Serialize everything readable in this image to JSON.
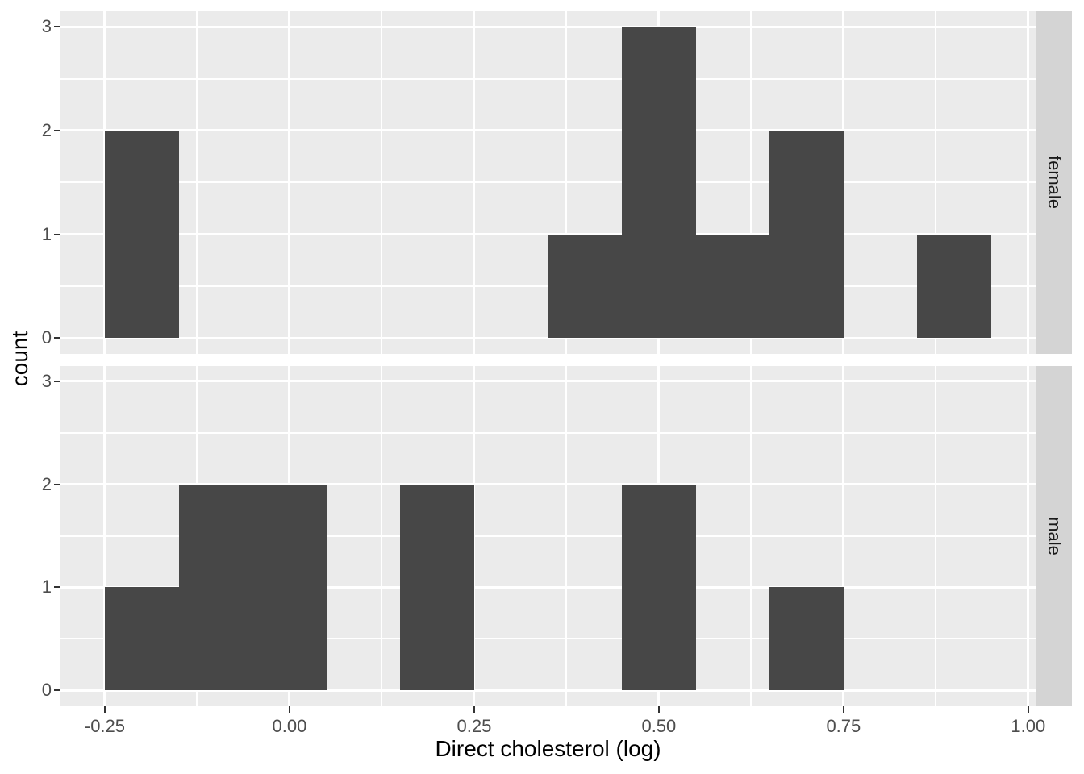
{
  "chart_data": {
    "type": "bar",
    "subtype": "faceted-histogram",
    "title": "",
    "xlabel": "Direct cholesterol (log)",
    "ylabel": "count",
    "binwidth": 0.1,
    "xlim": [
      -0.31,
      1.01
    ],
    "ylim": [
      -0.15,
      3.15
    ],
    "grid": "on",
    "legend_position": "none",
    "facet_layout": "rows, strip labels on right",
    "x_ticks": {
      "values": [
        -0.25,
        0.0,
        0.25,
        0.5,
        0.75,
        1.0
      ],
      "labels": [
        "-0.25",
        "0.00",
        "0.25",
        "0.50",
        "0.75",
        "1.00"
      ]
    },
    "y_ticks": {
      "values": [
        0,
        1,
        2,
        3
      ],
      "labels": [
        "0",
        "1",
        "2",
        "3"
      ]
    },
    "x_minor_gridlines": [
      -0.125,
      0.125,
      0.375,
      0.625,
      0.875
    ],
    "y_minor_gridlines": [
      0.5,
      1.5,
      2.5
    ],
    "facets": [
      {
        "label": "female",
        "bins": [
          {
            "x0": -0.25,
            "x1": -0.15,
            "count": 2
          },
          {
            "x0": 0.35,
            "x1": 0.45,
            "count": 1
          },
          {
            "x0": 0.45,
            "x1": 0.55,
            "count": 3
          },
          {
            "x0": 0.55,
            "x1": 0.65,
            "count": 1
          },
          {
            "x0": 0.65,
            "x1": 0.75,
            "count": 2
          },
          {
            "x0": 0.85,
            "x1": 0.95,
            "count": 1
          }
        ]
      },
      {
        "label": "male",
        "bins": [
          {
            "x0": -0.25,
            "x1": -0.15,
            "count": 1
          },
          {
            "x0": -0.15,
            "x1": -0.05,
            "count": 2
          },
          {
            "x0": -0.05,
            "x1": 0.05,
            "count": 2
          },
          {
            "x0": 0.15,
            "x1": 0.25,
            "count": 2
          },
          {
            "x0": 0.45,
            "x1": 0.55,
            "count": 2
          },
          {
            "x0": 0.65,
            "x1": 0.75,
            "count": 1
          }
        ]
      }
    ],
    "colors": {
      "figure_background": "#FFFFFF",
      "panel_background": "#EBEBEB",
      "bar_fill": "#474747",
      "gridline": "#FFFFFF",
      "strip_background": "#D4D4D4",
      "strip_text": "#1A1A1A",
      "tick_mark": "#333333",
      "tick_label": "#4D4D4D",
      "axis_title": "#000000"
    }
  }
}
